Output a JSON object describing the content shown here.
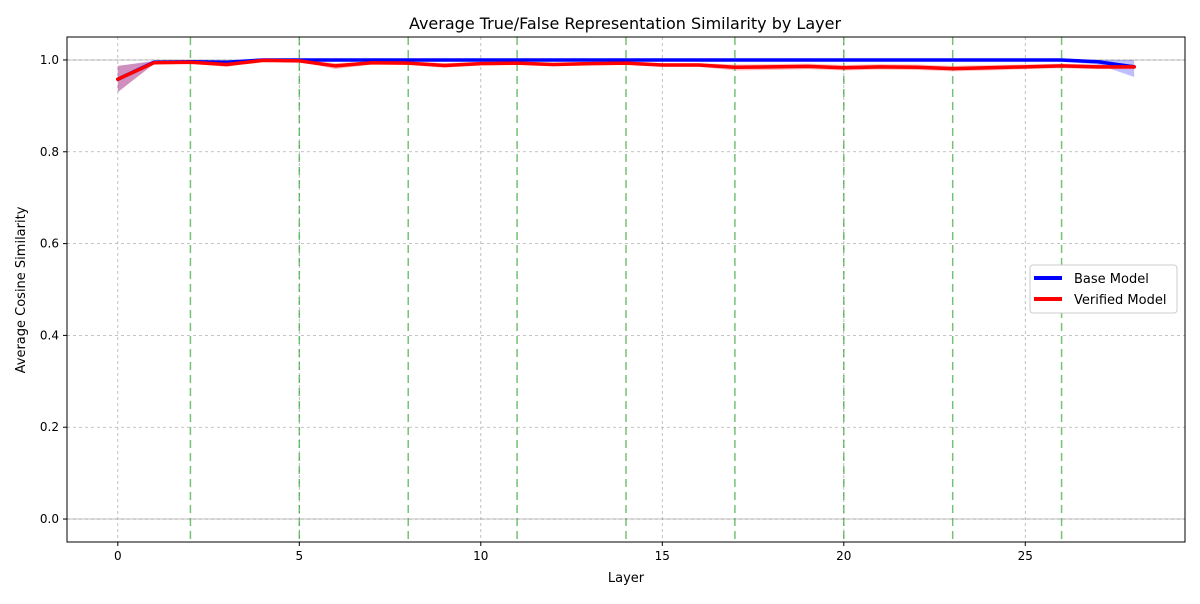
{
  "chart_data": {
    "type": "line",
    "title": "Average True/False Representation Similarity by Layer",
    "xlabel": "Layer",
    "ylabel": "Average Cosine Similarity",
    "xlim": [
      -1.4,
      29.4
    ],
    "ylim": [
      -0.05,
      1.05
    ],
    "xticks": [
      0,
      5,
      10,
      15,
      20,
      25
    ],
    "yticks": [
      0.0,
      0.2,
      0.4,
      0.6,
      0.8,
      1.0
    ],
    "ytick_labels": [
      "0.0",
      "0.2",
      "0.4",
      "0.6",
      "0.8",
      "1.0"
    ],
    "grid": true,
    "legend_position": "center-right",
    "reference_hlines": [
      0.0,
      1.0
    ],
    "vertical_markers": [
      2,
      5,
      8,
      11,
      14,
      17,
      20,
      23,
      26
    ],
    "x": [
      0,
      1,
      2,
      3,
      4,
      5,
      6,
      7,
      8,
      9,
      10,
      11,
      12,
      13,
      14,
      15,
      16,
      17,
      18,
      19,
      20,
      21,
      22,
      23,
      24,
      25,
      26,
      27,
      28
    ],
    "series": [
      {
        "name": "Base Model",
        "color": "#0000ff",
        "values": [
          0.958,
          0.995,
          0.996,
          0.995,
          1.0,
          1.0,
          1.0,
          1.0,
          1.0,
          1.0,
          1.0,
          1.0,
          1.0,
          1.0,
          1.0,
          1.0,
          1.0,
          1.0,
          1.0,
          1.0,
          1.0,
          1.0,
          1.0,
          1.0,
          1.0,
          1.0,
          1.0,
          0.996,
          0.985
        ],
        "band_low": [
          0.93,
          0.992,
          0.994,
          0.993,
          0.999,
          0.999,
          0.998,
          0.998,
          0.998,
          0.998,
          0.998,
          0.998,
          0.998,
          0.998,
          0.998,
          0.998,
          0.998,
          0.998,
          0.998,
          0.998,
          0.998,
          0.998,
          0.998,
          0.998,
          0.998,
          0.998,
          0.996,
          0.99,
          0.963
        ],
        "band_high": [
          0.987,
          0.998,
          0.998,
          0.998,
          1.0,
          1.0,
          1.0,
          1.0,
          1.0,
          1.0,
          1.0,
          1.0,
          1.0,
          1.0,
          1.0,
          1.0,
          1.0,
          1.0,
          1.0,
          1.0,
          1.0,
          1.0,
          1.0,
          1.0,
          1.0,
          1.0,
          1.0,
          1.0,
          1.0
        ]
      },
      {
        "name": "Verified Model",
        "color": "#ff0000",
        "values": [
          0.958,
          0.994,
          0.995,
          0.99,
          0.999,
          0.998,
          0.987,
          0.994,
          0.993,
          0.988,
          0.992,
          0.993,
          0.99,
          0.992,
          0.993,
          0.989,
          0.989,
          0.984,
          0.985,
          0.986,
          0.983,
          0.985,
          0.984,
          0.981,
          0.983,
          0.985,
          0.987,
          0.985,
          0.985
        ],
        "band_low": [
          0.93,
          0.991,
          0.992,
          0.985,
          0.998,
          0.996,
          0.98,
          0.99,
          0.989,
          0.983,
          0.988,
          0.989,
          0.986,
          0.988,
          0.989,
          0.985,
          0.985,
          0.977,
          0.978,
          0.98,
          0.977,
          0.979,
          0.978,
          0.975,
          0.977,
          0.98,
          0.982,
          0.98,
          0.98
        ],
        "band_high": [
          0.987,
          0.997,
          0.998,
          0.994,
          1.0,
          1.0,
          0.993,
          0.997,
          0.997,
          0.993,
          0.996,
          0.997,
          0.994,
          0.996,
          0.997,
          0.993,
          0.993,
          0.99,
          0.991,
          0.992,
          0.989,
          0.991,
          0.99,
          0.987,
          0.989,
          0.99,
          0.992,
          0.99,
          0.99
        ]
      }
    ]
  }
}
